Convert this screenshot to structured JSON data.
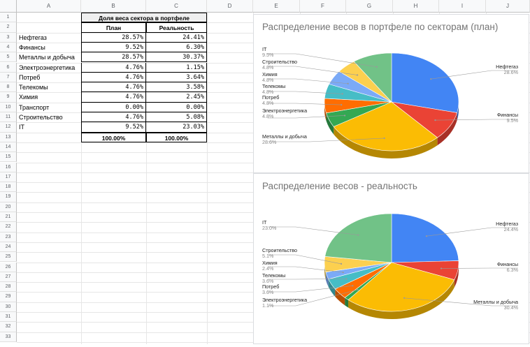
{
  "columns": [
    "A",
    "B",
    "C",
    "D",
    "E",
    "F",
    "G",
    "H",
    "I",
    "J"
  ],
  "rows": [
    "1",
    "2",
    "3",
    "4",
    "5",
    "6",
    "7",
    "8",
    "9",
    "10",
    "11",
    "12",
    "13",
    "14",
    "15",
    "16",
    "17",
    "18",
    "19",
    "20",
    "21",
    "22",
    "23",
    "24",
    "25",
    "26",
    "27",
    "28",
    "29",
    "30",
    "31",
    "32",
    "33"
  ],
  "table": {
    "title": "Доля веса сектора в портфеле",
    "head_plan": "План",
    "head_real": "Реальность",
    "rows": [
      {
        "sector": "Нефтегаз",
        "plan": "28.57%",
        "real": "24.41%"
      },
      {
        "sector": "Финансы",
        "plan": "9.52%",
        "real": "6.30%"
      },
      {
        "sector": "Металлы и добыча",
        "plan": "28.57%",
        "real": "30.37%"
      },
      {
        "sector": "Электроэнергетика",
        "plan": "4.76%",
        "real": "1.15%"
      },
      {
        "sector": "Потреб",
        "plan": "4.76%",
        "real": "3.64%"
      },
      {
        "sector": "Телекомы",
        "plan": "4.76%",
        "real": "3.58%"
      },
      {
        "sector": "Химия",
        "plan": "4.76%",
        "real": "2.45%"
      },
      {
        "sector": "Транспорт",
        "plan": "0.00%",
        "real": "0.00%"
      },
      {
        "sector": "Строительство",
        "plan": "4.76%",
        "real": "5.08%"
      },
      {
        "sector": "IT",
        "plan": "9.52%",
        "real": "23.03%"
      }
    ],
    "total_plan": "100.00%",
    "total_real": "100.00%"
  },
  "colors": {
    "Нефтегаз": "#4285f4",
    "Финансы": "#ea4335",
    "Металлы и добыча": "#fbbc04",
    "Электроэнергетика": "#34a853",
    "Потреб": "#ff6d01",
    "Телекомы": "#46bdc6",
    "Химия": "#7baaf7",
    "Строительство": "#fcd04f",
    "IT": "#71c287"
  },
  "chart_data": [
    {
      "type": "pie",
      "title": "Распределение весов в портфеле по секторам (план)",
      "slices": [
        {
          "name": "Нефтегаз",
          "value": 28.6,
          "label": "28.6%"
        },
        {
          "name": "Финансы",
          "value": 9.5,
          "label": "9.5%"
        },
        {
          "name": "Металлы и добыча",
          "value": 28.6,
          "label": "28.6%"
        },
        {
          "name": "Электроэнергетика",
          "value": 4.8,
          "label": "4.8%"
        },
        {
          "name": "Потреб",
          "value": 4.8,
          "label": "4.8%"
        },
        {
          "name": "Телекомы",
          "value": 4.8,
          "label": "4.8%"
        },
        {
          "name": "Химия",
          "value": 4.8,
          "label": "4.8%"
        },
        {
          "name": "Строительство",
          "value": 4.8,
          "label": "4.8%"
        },
        {
          "name": "IT",
          "value": 9.5,
          "label": "9.5%"
        }
      ]
    },
    {
      "type": "pie",
      "title": "Распределение весов - реальность",
      "slices": [
        {
          "name": "Нефтегаз",
          "value": 24.4,
          "label": "24.4%"
        },
        {
          "name": "Финансы",
          "value": 6.3,
          "label": "6.3%"
        },
        {
          "name": "Металлы и добыча",
          "value": 30.4,
          "label": "30.4%"
        },
        {
          "name": "Электроэнергетика",
          "value": 1.1,
          "label": "1.1%"
        },
        {
          "name": "Потреб",
          "value": 3.6,
          "label": "3.6%"
        },
        {
          "name": "Телекомы",
          "value": 3.6,
          "label": "3.6%"
        },
        {
          "name": "Химия",
          "value": 2.4,
          "label": "2.4%"
        },
        {
          "name": "Строительство",
          "value": 5.1,
          "label": "5.1%"
        },
        {
          "name": "IT",
          "value": 23.0,
          "label": "23.0%"
        }
      ]
    }
  ]
}
